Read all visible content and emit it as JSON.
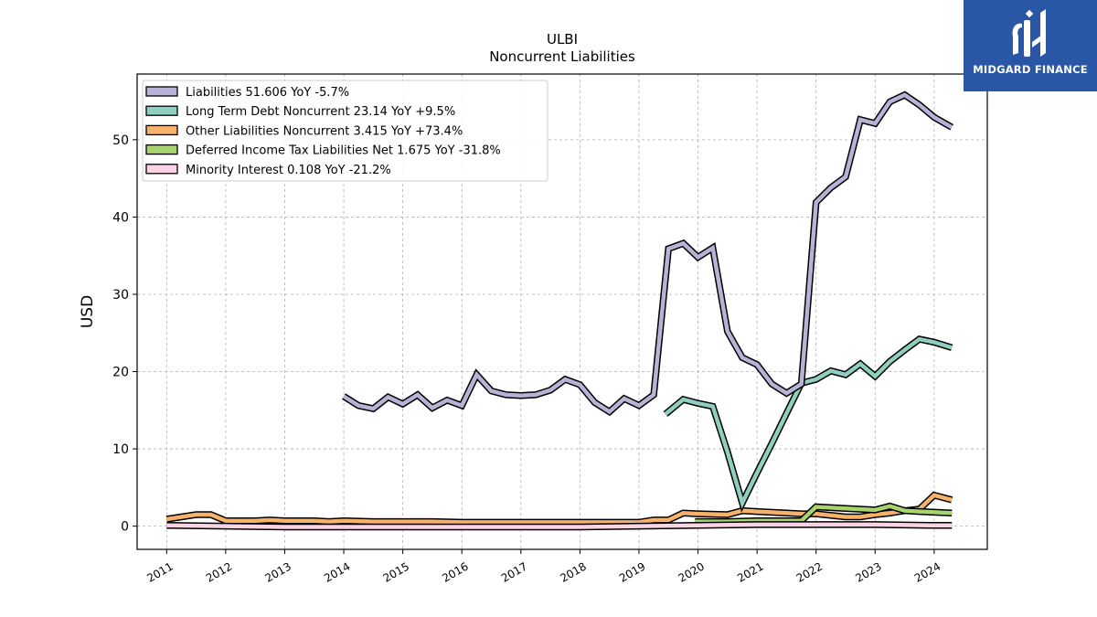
{
  "logo": {
    "text": "MIDGARD FINANCE",
    "bg_color": "#2a56a6"
  },
  "chart_data": {
    "type": "line",
    "title": "ULBI",
    "subtitle": "Noncurrent  Liabilities",
    "ylabel": "USD",
    "xlabel": "",
    "xlim": [
      2010.5,
      2024.9
    ],
    "ylim": [
      -3,
      58.5
    ],
    "yticks": [
      0,
      10,
      20,
      30,
      40,
      50
    ],
    "xticks": [
      "2011",
      "2012",
      "2013",
      "2014",
      "2015",
      "2016",
      "2017",
      "2018",
      "2019",
      "2020",
      "2021",
      "2022",
      "2023",
      "2024"
    ],
    "grid": true,
    "legend_position": "top-left",
    "series": [
      {
        "name": "Liabilities",
        "legend": "Liabilities  51.606 YoY -5.7%",
        "color": "#b7b3d7",
        "points": [
          [
            2014.0,
            16.8
          ],
          [
            2014.25,
            15.6
          ],
          [
            2014.5,
            15.2
          ],
          [
            2014.75,
            16.7
          ],
          [
            2015.0,
            15.8
          ],
          [
            2015.25,
            17.0
          ],
          [
            2015.5,
            15.3
          ],
          [
            2015.75,
            16.3
          ],
          [
            2016.0,
            15.6
          ],
          [
            2016.25,
            19.6
          ],
          [
            2016.5,
            17.5
          ],
          [
            2016.75,
            17.0
          ],
          [
            2017.0,
            16.9
          ],
          [
            2017.25,
            17.0
          ],
          [
            2017.5,
            17.6
          ],
          [
            2017.75,
            19.0
          ],
          [
            2018.0,
            18.3
          ],
          [
            2018.25,
            16.0
          ],
          [
            2018.5,
            14.8
          ],
          [
            2018.75,
            16.5
          ],
          [
            2019.0,
            15.6
          ],
          [
            2019.25,
            17.0
          ],
          [
            2019.5,
            35.9
          ],
          [
            2019.75,
            36.6
          ],
          [
            2020.0,
            34.8
          ],
          [
            2020.25,
            36.0
          ],
          [
            2020.5,
            25.2
          ],
          [
            2020.75,
            21.8
          ],
          [
            2021.0,
            20.9
          ],
          [
            2021.25,
            18.4
          ],
          [
            2021.5,
            17.2
          ],
          [
            2021.75,
            18.4
          ],
          [
            2022.0,
            41.9
          ],
          [
            2022.25,
            43.8
          ],
          [
            2022.5,
            45.2
          ],
          [
            2022.75,
            52.6
          ],
          [
            2023.0,
            52.1
          ],
          [
            2023.25,
            54.9
          ],
          [
            2023.5,
            55.8
          ],
          [
            2023.75,
            54.5
          ],
          [
            2024.0,
            52.9
          ],
          [
            2024.3,
            51.6
          ]
        ]
      },
      {
        "name": "Long Term Debt Noncurrent",
        "legend": "Long Term Debt Noncurrent  23.14 YoY +9.5%",
        "color": "#8ecfc0",
        "points": [
          [
            2019.45,
            14.5
          ],
          [
            2019.75,
            16.4
          ],
          [
            2020.0,
            15.9
          ],
          [
            2020.25,
            15.5
          ],
          [
            2020.5,
            9.6
          ],
          [
            2020.75,
            3.0
          ],
          [
            2021.0,
            6.9
          ],
          [
            2021.25,
            10.7
          ],
          [
            2021.5,
            14.6
          ],
          [
            2021.75,
            18.5
          ],
          [
            2022.0,
            19.0
          ],
          [
            2022.25,
            20.1
          ],
          [
            2022.5,
            19.6
          ],
          [
            2022.75,
            21.0
          ],
          [
            2023.0,
            19.4
          ],
          [
            2023.25,
            21.3
          ],
          [
            2023.5,
            22.8
          ],
          [
            2023.75,
            24.2
          ],
          [
            2024.0,
            23.8
          ],
          [
            2024.3,
            23.1
          ]
        ]
      },
      {
        "name": "Other Liabilities Noncurrent",
        "legend": "Other Liabilities Noncurrent  3.415 YoY +73.4%",
        "color": "#f6b26b",
        "points": [
          [
            2011.0,
            0.9
          ],
          [
            2011.25,
            1.2
          ],
          [
            2011.5,
            1.5
          ],
          [
            2011.75,
            1.5
          ],
          [
            2012.0,
            0.7
          ],
          [
            2012.5,
            0.7
          ],
          [
            2012.75,
            0.8
          ],
          [
            2013.0,
            0.7
          ],
          [
            2013.5,
            0.7
          ],
          [
            2013.75,
            0.6
          ],
          [
            2014.0,
            0.7
          ],
          [
            2014.5,
            0.6
          ],
          [
            2015.0,
            0.6
          ],
          [
            2015.5,
            0.6
          ],
          [
            2016.0,
            0.5
          ],
          [
            2016.5,
            0.5
          ],
          [
            2017.0,
            0.5
          ],
          [
            2017.5,
            0.5
          ],
          [
            2018.0,
            0.5
          ],
          [
            2018.5,
            0.5
          ],
          [
            2019.0,
            0.5
          ],
          [
            2019.25,
            0.8
          ],
          [
            2019.5,
            0.8
          ],
          [
            2019.75,
            1.7
          ],
          [
            2020.0,
            1.6
          ],
          [
            2020.5,
            1.5
          ],
          [
            2020.75,
            2.0
          ],
          [
            2021.0,
            1.9
          ],
          [
            2021.5,
            1.7
          ],
          [
            2021.75,
            1.6
          ],
          [
            2022.0,
            1.6
          ],
          [
            2022.5,
            1.2
          ],
          [
            2022.75,
            1.2
          ],
          [
            2023.0,
            1.5
          ],
          [
            2023.25,
            1.7
          ],
          [
            2023.5,
            2.0
          ],
          [
            2023.75,
            2.2
          ],
          [
            2024.0,
            4.0
          ],
          [
            2024.3,
            3.4
          ]
        ]
      },
      {
        "name": "Deferred Income Tax Liabilities Net",
        "legend": "Deferred Income Tax Liabilities Net  1.675 YoY -31.8%",
        "color": "#a8d46f",
        "points": [
          [
            2019.95,
            0.6
          ],
          [
            2020.5,
            0.6
          ],
          [
            2021.0,
            0.7
          ],
          [
            2021.75,
            0.7
          ],
          [
            2022.0,
            2.5
          ],
          [
            2022.5,
            2.3
          ],
          [
            2023.0,
            2.1
          ],
          [
            2023.25,
            2.6
          ],
          [
            2023.5,
            2.0
          ],
          [
            2023.75,
            1.9
          ],
          [
            2024.0,
            1.8
          ],
          [
            2024.3,
            1.7
          ]
        ]
      },
      {
        "name": "Minority Interest",
        "legend": "Minority Interest  0.108 YoY -21.2%",
        "color": "#fcd3e5",
        "points": [
          [
            2011.0,
            0.1
          ],
          [
            2012.0,
            0.0
          ],
          [
            2013.0,
            -0.1
          ],
          [
            2014.0,
            -0.1
          ],
          [
            2015.0,
            -0.1
          ],
          [
            2016.0,
            -0.1
          ],
          [
            2017.0,
            -0.1
          ],
          [
            2018.0,
            -0.1
          ],
          [
            2019.0,
            0.0
          ],
          [
            2020.0,
            0.1
          ],
          [
            2021.0,
            0.2
          ],
          [
            2022.0,
            0.2
          ],
          [
            2023.0,
            0.2
          ],
          [
            2024.0,
            0.1
          ],
          [
            2024.3,
            0.1
          ]
        ]
      }
    ]
  }
}
